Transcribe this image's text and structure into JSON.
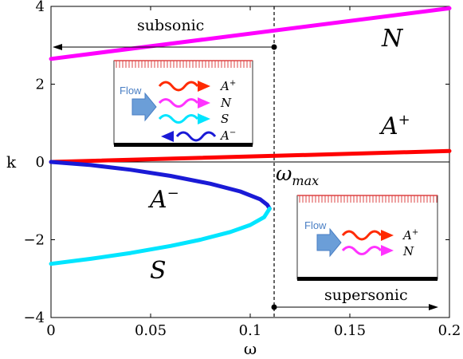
{
  "chart_data": {
    "type": "line",
    "xlabel": "ω",
    "ylabel": "k",
    "xlim": [
      0,
      0.2
    ],
    "ylim": [
      -4,
      4
    ],
    "x_ticks": [
      "0",
      "0.05",
      "0.1",
      "0.15",
      "0.2"
    ],
    "y_ticks": [
      "4",
      "2",
      "0",
      "−2",
      "−4"
    ],
    "grid": false,
    "series": [
      {
        "name": "N",
        "color": "#ff00ff",
        "points": [
          [
            0,
            2.65
          ],
          [
            0.2,
            3.95
          ]
        ]
      },
      {
        "name": "A+",
        "color": "#ff0000",
        "points": [
          [
            0,
            0
          ],
          [
            0.2,
            0.28
          ]
        ]
      },
      {
        "name": "A−",
        "color": "#1a1ad6",
        "points": [
          [
            0,
            0
          ],
          [
            0.02,
            -0.08
          ],
          [
            0.04,
            -0.2
          ],
          [
            0.06,
            -0.36
          ],
          [
            0.08,
            -0.56
          ],
          [
            0.095,
            -0.76
          ],
          [
            0.105,
            -0.96
          ],
          [
            0.1085,
            -1.1
          ],
          [
            0.1097,
            -1.2
          ]
        ]
      },
      {
        "name": "S",
        "color": "#00e5ff",
        "points": [
          [
            0.1097,
            -1.2
          ],
          [
            0.107,
            -1.42
          ],
          [
            0.1,
            -1.62
          ],
          [
            0.09,
            -1.8
          ],
          [
            0.075,
            -2.0
          ],
          [
            0.06,
            -2.16
          ],
          [
            0.04,
            -2.34
          ],
          [
            0.02,
            -2.49
          ],
          [
            0,
            -2.62
          ]
        ]
      }
    ],
    "omega_max": 0.112,
    "annotations": {
      "subsonic": "subsonic",
      "supersonic": "supersonic",
      "omega_max_label": "ω",
      "omega_max_sub": "max",
      "region_N": "N",
      "region_A_plus": "A",
      "region_A_minus": "A",
      "region_S": "S",
      "sup_plus": "+",
      "sup_minus": "−"
    },
    "inset_subsonic": {
      "flow_label": "Flow",
      "waves": [
        "A+",
        "N",
        "S",
        "A−"
      ]
    },
    "inset_supersonic": {
      "flow_label": "Flow",
      "waves": [
        "A+",
        "N"
      ]
    }
  }
}
